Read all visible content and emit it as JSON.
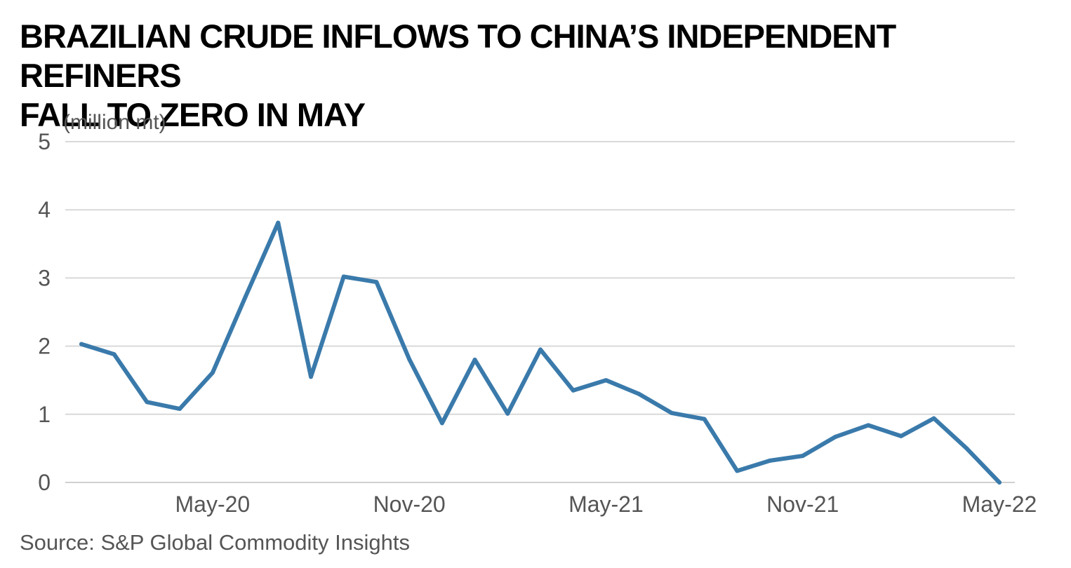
{
  "title_lines": [
    "BRAZILIAN CRUDE INFLOWS TO CHINA’S INDEPENDENT REFINERS",
    "FALL TO ZERO IN MAY"
  ],
  "source": "Source: S&P Global Commodity Insights",
  "colors": {
    "line": "#3a7aab",
    "grid": "#d9d9d9",
    "text": "#555555"
  },
  "chart_data": {
    "type": "line",
    "title": "BRAZILIAN CRUDE INFLOWS TO CHINA’S INDEPENDENT REFINERS FALL TO ZERO IN MAY",
    "ylabel": "(million mt)",
    "xlabel": "",
    "ylim": [
      0,
      5
    ],
    "yticks": [
      0,
      1,
      2,
      3,
      4,
      5
    ],
    "x_tick_labels": [
      "May-20",
      "Nov-20",
      "May-21",
      "Nov-21",
      "May-22"
    ],
    "grid": true,
    "legend": "none",
    "x": [
      "Jan-20",
      "Feb-20",
      "Mar-20",
      "Apr-20",
      "May-20",
      "Jun-20",
      "Jul-20",
      "Aug-20",
      "Sep-20",
      "Oct-20",
      "Nov-20",
      "Dec-20",
      "Jan-21",
      "Feb-21",
      "Mar-21",
      "Apr-21",
      "May-21",
      "Jun-21",
      "Jul-21",
      "Aug-21",
      "Sep-21",
      "Oct-21",
      "Nov-21",
      "Dec-21",
      "Jan-22",
      "Feb-22",
      "Mar-22",
      "Apr-22",
      "May-22"
    ],
    "series": [
      {
        "values": [
          2.03,
          1.88,
          1.18,
          1.08,
          1.61,
          2.72,
          3.81,
          1.55,
          3.02,
          2.94,
          1.81,
          0.87,
          1.8,
          1.01,
          1.95,
          1.35,
          1.5,
          1.3,
          1.02,
          0.93,
          0.17,
          0.32,
          0.39,
          0.67,
          0.84,
          0.68,
          0.94,
          0.5,
          0.0
        ]
      }
    ]
  }
}
